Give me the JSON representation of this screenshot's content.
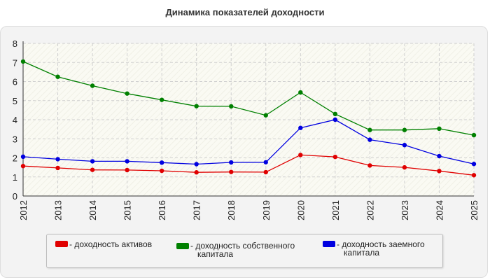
{
  "chart_data": {
    "type": "line",
    "title": "Динамика показателей доходности",
    "x": [
      "2012",
      "2013",
      "2014",
      "2015",
      "2016",
      "2017",
      "2018",
      "2019",
      "2020",
      "2021",
      "2022",
      "2023",
      "2024",
      "2025"
    ],
    "ylim": [
      0,
      8
    ],
    "yticks": [
      "0",
      "1",
      "2",
      "3",
      "4",
      "5",
      "6",
      "7",
      "8"
    ],
    "grid": true,
    "legend_position": "bottom",
    "series": [
      {
        "name": "- доходность активов",
        "color": "#e00000",
        "values": [
          1.57,
          1.47,
          1.37,
          1.36,
          1.32,
          1.24,
          1.26,
          1.25,
          2.15,
          2.05,
          1.6,
          1.5,
          1.31,
          1.09
        ]
      },
      {
        "name": "- доходность собственного капитала",
        "color": "#008000",
        "values": [
          7.05,
          6.25,
          5.78,
          5.37,
          5.04,
          4.71,
          4.7,
          4.23,
          5.43,
          4.3,
          3.46,
          3.46,
          3.53,
          3.19
        ]
      },
      {
        "name": "- доходность заемного капитала",
        "color": "#0000e0",
        "values": [
          2.06,
          1.93,
          1.82,
          1.82,
          1.75,
          1.67,
          1.76,
          1.77,
          3.57,
          4.0,
          2.95,
          2.67,
          2.09,
          1.68
        ]
      }
    ]
  },
  "legend": [
    {
      "line1": "- доходность активов",
      "line2": ""
    },
    {
      "line1": "- доходность собственного",
      "line2": "капитала"
    },
    {
      "line1": "- доходность заемного",
      "line2": "капитала"
    }
  ]
}
